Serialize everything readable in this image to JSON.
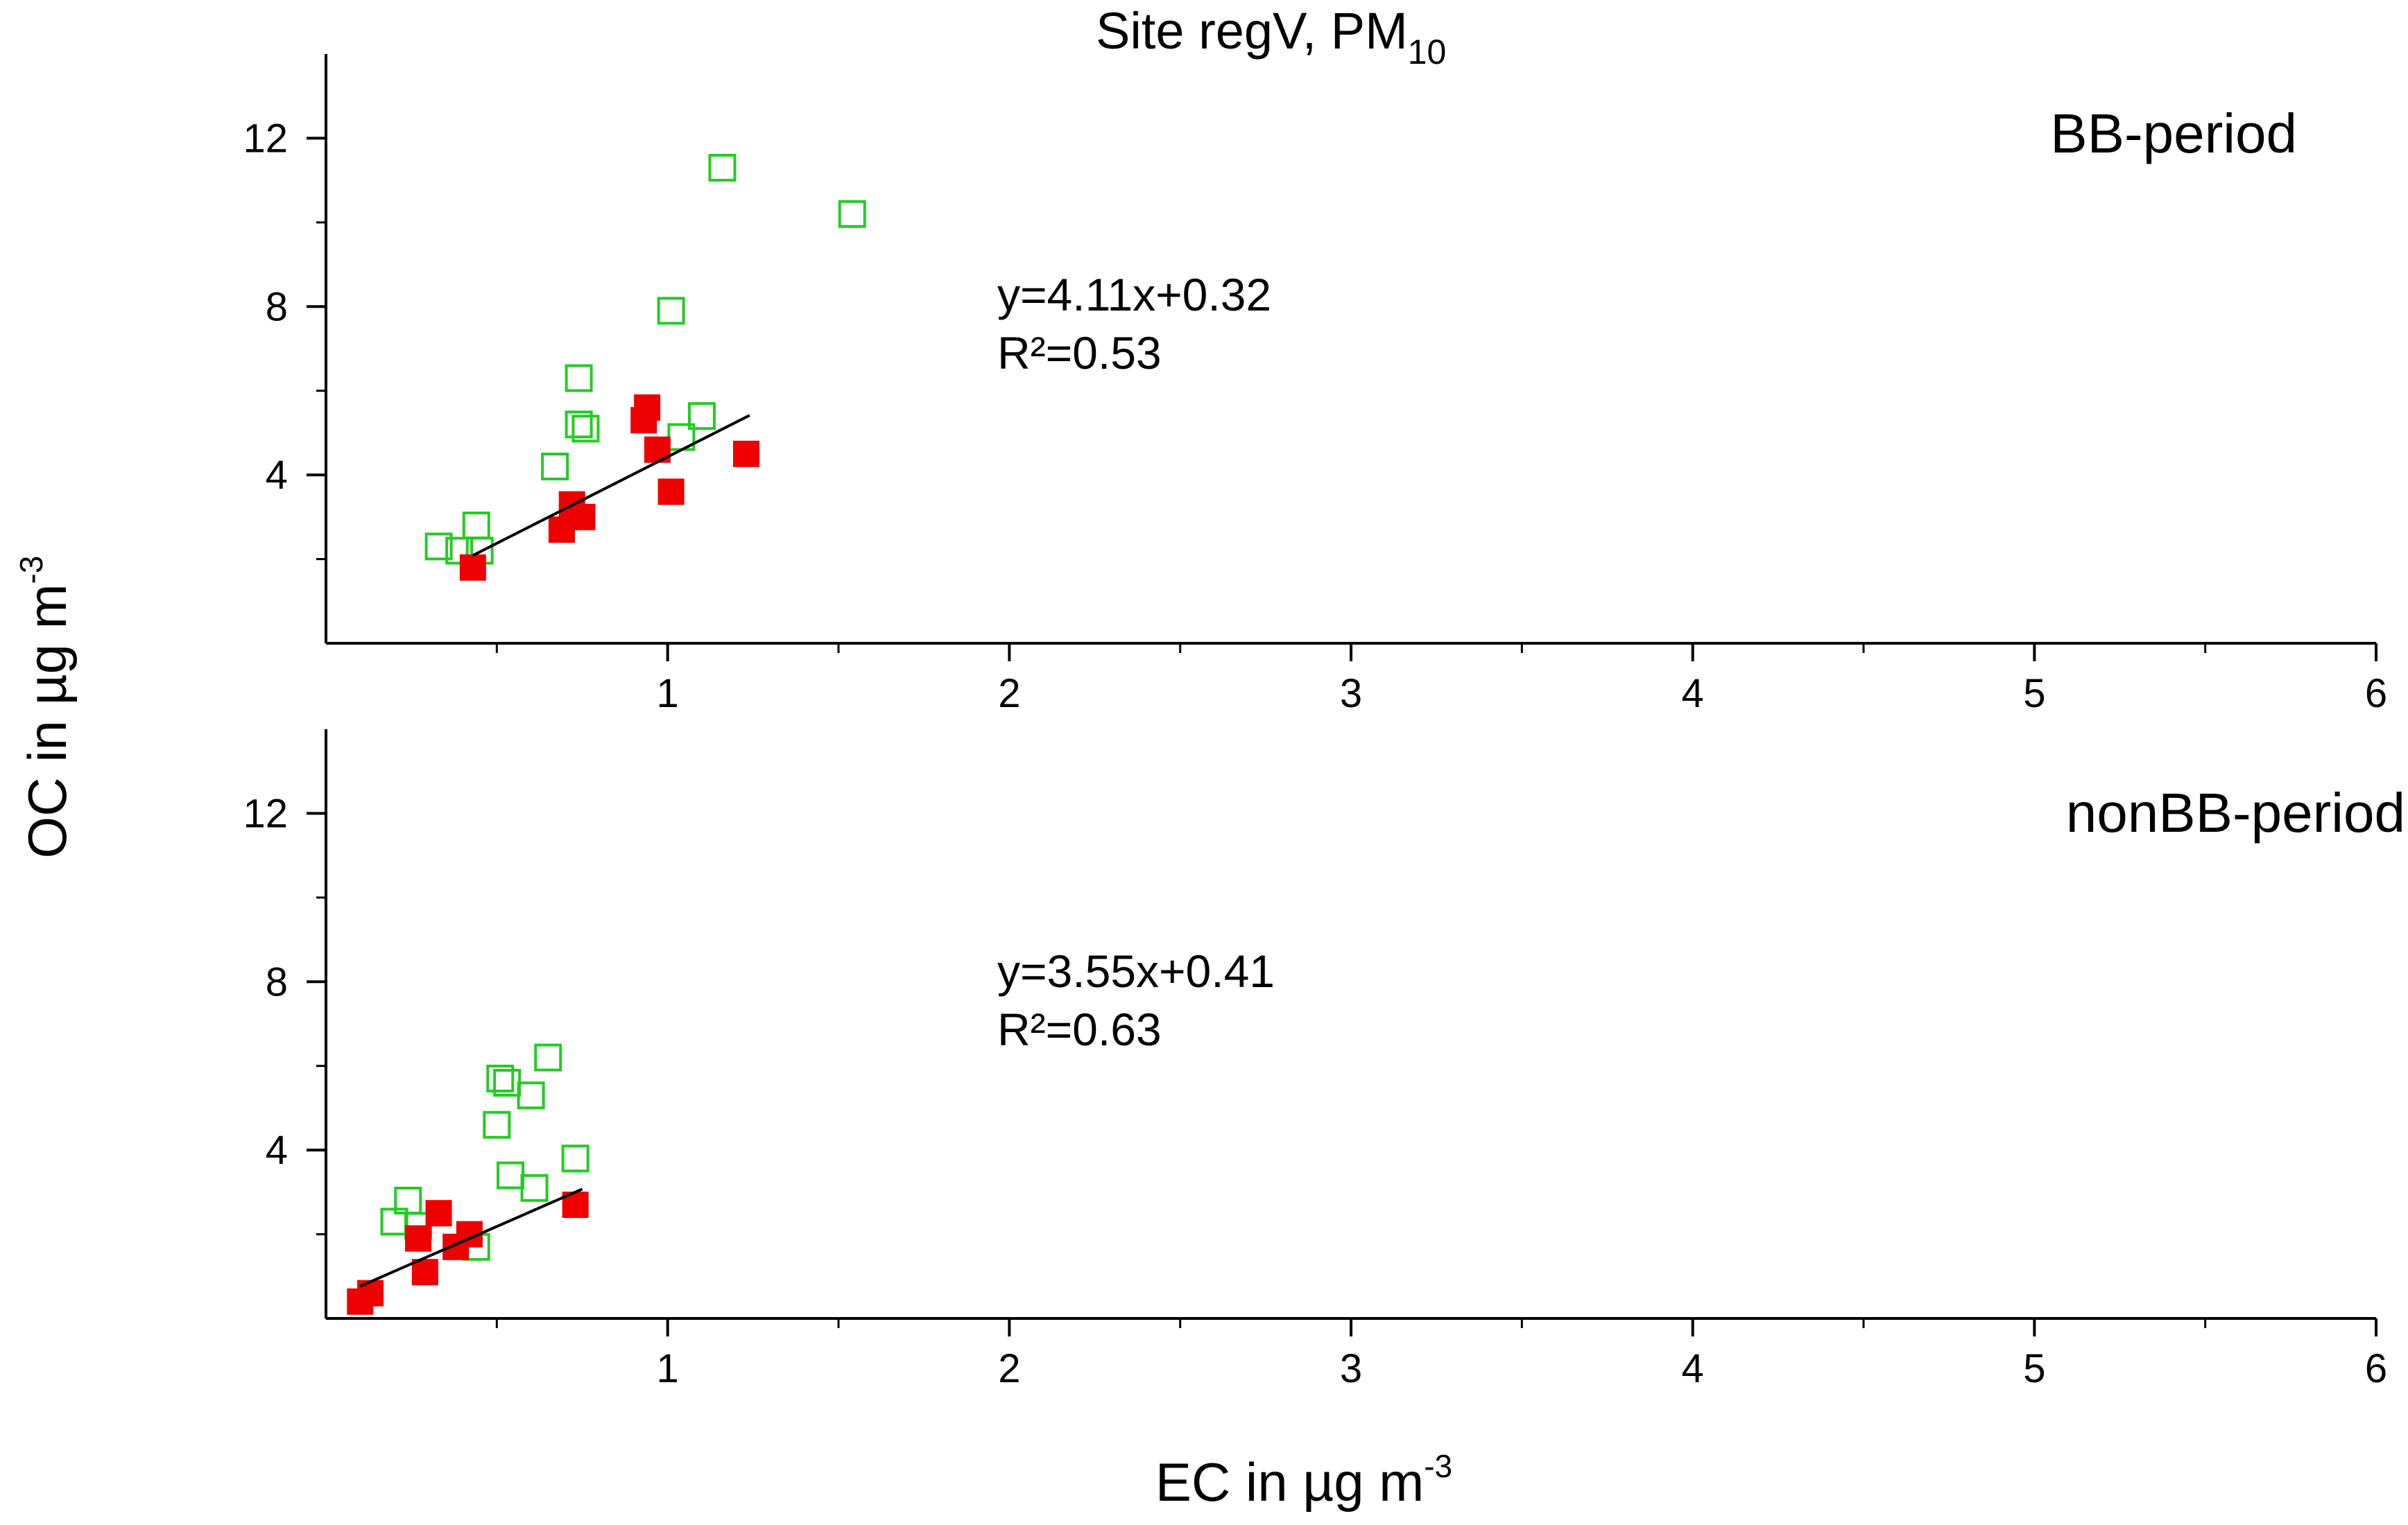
{
  "chart_data": {
    "type": "scatter",
    "title": "Site regV, PM",
    "title_subscript": "10",
    "xlabel": "EC in µg m",
    "xlabel_superscript": "-3",
    "ylabel": "OC in µg m",
    "ylabel_superscript": "-3",
    "xlim": [
      0,
      6
    ],
    "ylim": [
      0,
      14
    ],
    "xticks": [
      "1",
      "2",
      "3",
      "4",
      "5",
      "6"
    ],
    "xtick_values": [
      1,
      2,
      3,
      4,
      5,
      6
    ],
    "yticks": [
      "4",
      "8",
      "12"
    ],
    "ytick_values": [
      4,
      8,
      12
    ],
    "colors": {
      "green": "#22cc22",
      "red": "#ee0000",
      "line": "#000000"
    },
    "panels": [
      {
        "label": "BB-period",
        "equation": "y=4.11x+0.32",
        "r2": "R²=0.53",
        "fit": {
          "x_start": 0.43,
          "x_end": 1.24
        },
        "series": [
          {
            "name": "open green squares",
            "marker": "open-square",
            "color": "green",
            "points": [
              [
                0.33,
                2.3
              ],
              [
                0.39,
                2.2
              ],
              [
                0.45,
                2.2
              ],
              [
                0.44,
                2.8
              ],
              [
                0.67,
                4.2
              ],
              [
                0.74,
                5.2
              ],
              [
                0.76,
                5.1
              ],
              [
                0.74,
                6.3
              ],
              [
                1.01,
                7.9
              ],
              [
                1.04,
                4.9
              ],
              [
                1.1,
                5.4
              ],
              [
                1.16,
                11.3
              ],
              [
                1.54,
                10.2
              ]
            ]
          },
          {
            "name": "filled red squares",
            "marker": "filled-square",
            "color": "red",
            "points": [
              [
                0.43,
                1.8
              ],
              [
                0.69,
                2.7
              ],
              [
                0.72,
                3.3
              ],
              [
                0.75,
                3.0
              ],
              [
                0.93,
                5.3
              ],
              [
                0.94,
                5.6
              ],
              [
                0.97,
                4.6
              ],
              [
                1.01,
                3.6
              ],
              [
                1.23,
                4.5
              ]
            ]
          }
        ]
      },
      {
        "label": "nonBB-period",
        "equation": "y=3.55x+0.41",
        "r2": "R²=0.63",
        "fit": {
          "x_start": 0.1,
          "x_end": 0.75
        },
        "series": [
          {
            "name": "open green squares",
            "marker": "open-square",
            "color": "green",
            "points": [
              [
                0.2,
                2.3
              ],
              [
                0.24,
                2.8
              ],
              [
                0.27,
                2.2
              ],
              [
                0.5,
                4.6
              ],
              [
                0.51,
                5.7
              ],
              [
                0.53,
                5.6
              ],
              [
                0.54,
                3.4
              ],
              [
                0.6,
                5.3
              ],
              [
                0.61,
                3.1
              ],
              [
                0.65,
                6.2
              ],
              [
                0.73,
                3.8
              ],
              [
                0.44,
                1.7
              ]
            ]
          },
          {
            "name": "filled red squares",
            "marker": "filled-square",
            "color": "red",
            "points": [
              [
                0.1,
                0.4
              ],
              [
                0.13,
                0.6
              ],
              [
                0.27,
                1.9
              ],
              [
                0.29,
                1.1
              ],
              [
                0.33,
                2.5
              ],
              [
                0.38,
                1.7
              ],
              [
                0.42,
                2.0
              ],
              [
                0.73,
                2.7
              ]
            ]
          }
        ]
      }
    ]
  }
}
